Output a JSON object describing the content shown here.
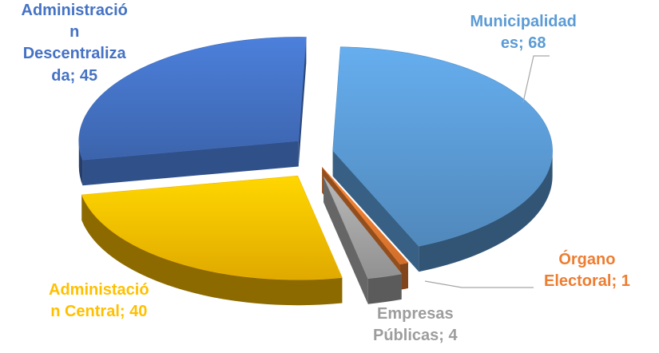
{
  "chart_data": {
    "type": "pie",
    "title": "",
    "series": [
      {
        "name": "",
        "categories": [
          "Municipalidades",
          "Órgano Electoral",
          "Empresas Públicas",
          "Administación Central",
          "Administración Descentralizada"
        ],
        "values": [
          68,
          1,
          4,
          40,
          45
        ]
      }
    ],
    "slices": [
      {
        "category": "Municipalidades",
        "value": 68,
        "color": "#5B9BD5",
        "exploded": true,
        "label_lines": [
          "Municipalidad",
          "es; 68"
        ]
      },
      {
        "category": "Órgano Electoral",
        "value": 1,
        "color": "#ED7D31",
        "exploded": true,
        "label_lines": [
          "Órgano",
          "Electoral; 1"
        ]
      },
      {
        "category": "Empresas Públicas",
        "value": 4,
        "color": "#A5A5A5",
        "exploded": true,
        "label_lines": [
          "Empresas",
          "Públicas; 4"
        ]
      },
      {
        "category": "Administación Central",
        "value": 40,
        "color": "#FFC000",
        "exploded": true,
        "label_lines": [
          "Administació",
          "n Central; 40"
        ]
      },
      {
        "category": "Administración Descentralizada",
        "value": 45,
        "color": "#4472C4",
        "exploded": true,
        "label_lines": [
          "Administració",
          "n",
          "Descentraliza",
          "da; 45"
        ]
      }
    ],
    "style": "3d-exploded-pie",
    "data_labels": "category; value",
    "legend": "none"
  }
}
